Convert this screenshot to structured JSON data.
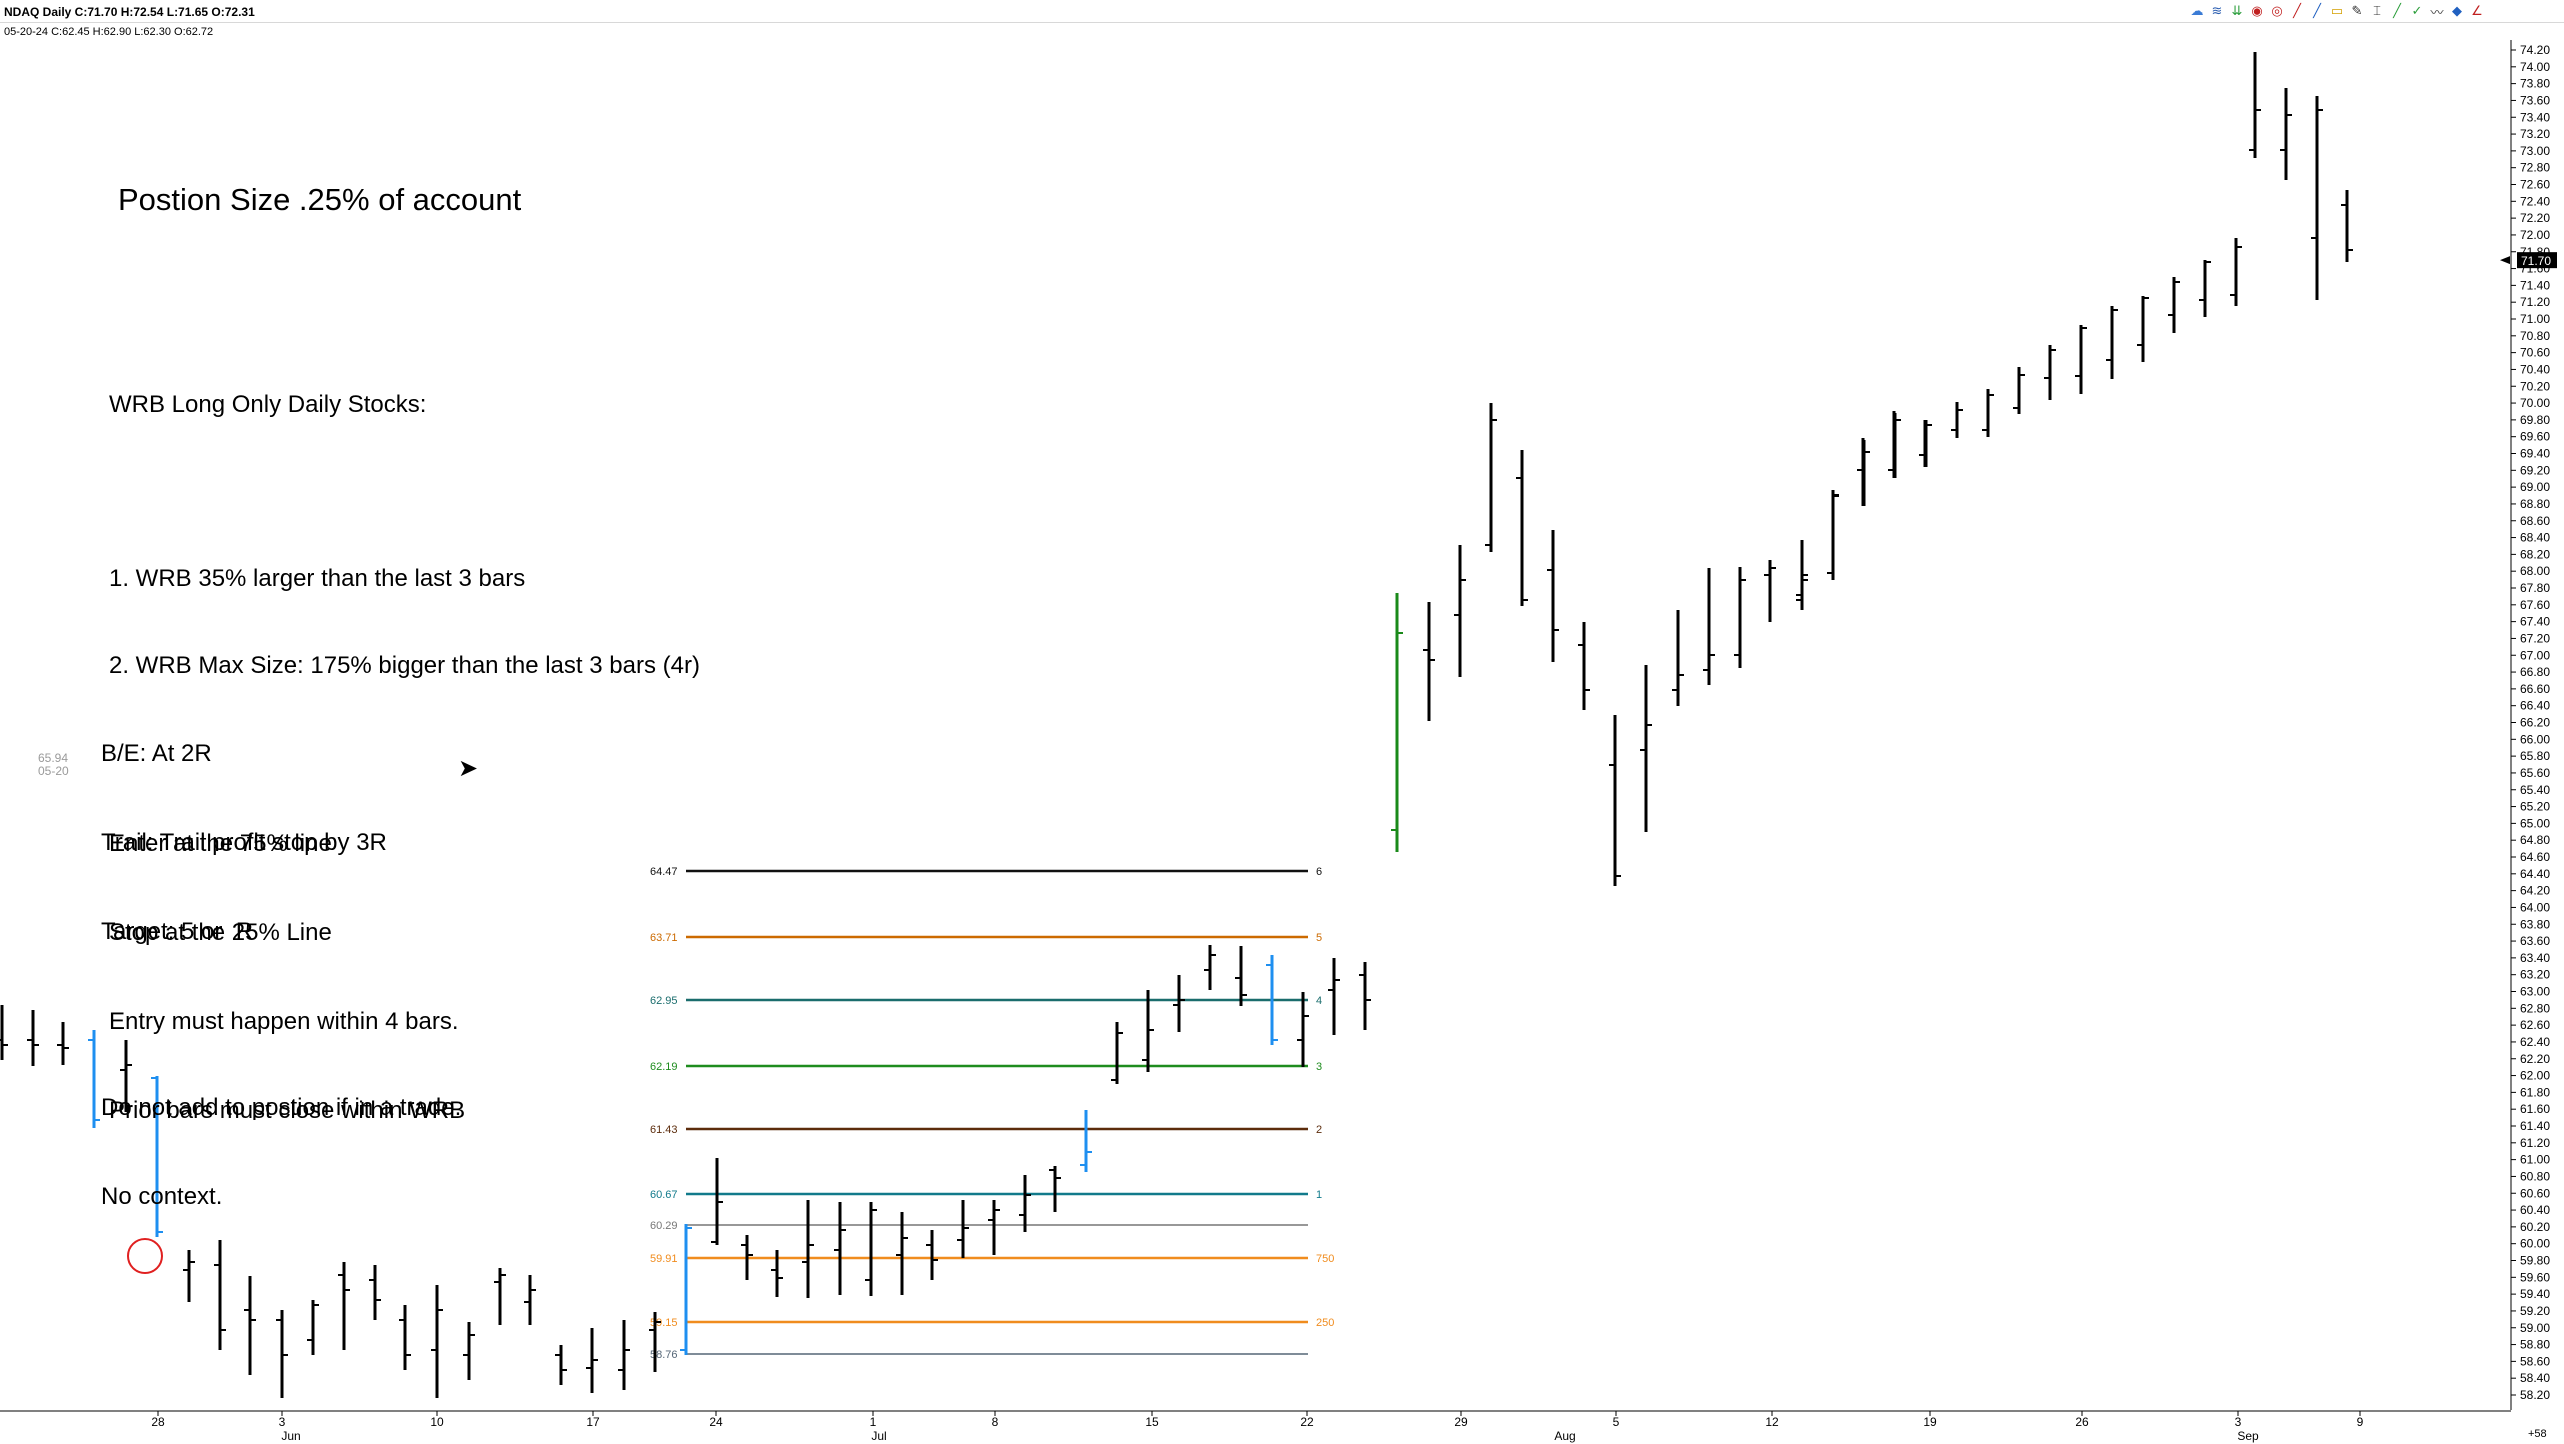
{
  "header": {
    "info_line1": "NDAQ Daily  C:71.70  H:72.54  L:71.65  O:72.31",
    "info_line2": "05-20-24  C:62.45  H:62.90  L:62.30  O:62.72"
  },
  "toolbar": {
    "icons": [
      "cloud-icon",
      "stack-icon",
      "arrows-icon",
      "target-icon",
      "spiral-icon",
      "line-red-icon",
      "line-blue-icon",
      "rect-icon",
      "pencil-icon",
      "cursor-icon",
      "line-icon",
      "check-icon",
      "zigzag-icon",
      "shapes-icon",
      "angle-icon"
    ]
  },
  "notes": {
    "title": "Postion Size .25% of account",
    "rules": [
      "WRB Long Only Daily Stocks:",
      "",
      "1. WRB 35% larger than the last 3 bars",
      "2. WRB Max Size: 175% bigger than the last 3 bars (4r)",
      "",
      "Enter at the 75% line",
      "Stop at the 25% Line",
      "Entry must happen within 4 bars.",
      "Prior bars must close within WRB"
    ],
    "management": [
      "B/E: At 2R",
      "Trail: Trail profit stop by 3R",
      "Target: 5 or  R",
      "",
      "Do not add to postion if in a trade.",
      "No context."
    ],
    "side_value_price": "65.94",
    "side_value_date": "05-20"
  },
  "price_axis": {
    "labels": [
      "74.20",
      "74.00",
      "73.80",
      "73.60",
      "73.40",
      "73.20",
      "73.00",
      "72.80",
      "72.60",
      "72.40",
      "72.20",
      "72.00",
      "71.80",
      "71.60",
      "71.40",
      "71.20",
      "71.00",
      "70.80",
      "70.60",
      "70.40",
      "70.20",
      "70.00",
      "69.80",
      "69.60",
      "69.40",
      "69.20",
      "69.00",
      "68.80",
      "68.60",
      "68.40",
      "68.20",
      "68.00",
      "67.80",
      "67.60",
      "67.40",
      "67.20",
      "67.00",
      "66.80",
      "66.60",
      "66.40",
      "66.20",
      "66.00",
      "65.80",
      "65.60",
      "65.40",
      "65.20",
      "65.00",
      "64.80",
      "64.60",
      "64.40",
      "64.20",
      "64.00",
      "63.80",
      "63.60",
      "63.40",
      "63.20",
      "63.00",
      "62.80",
      "62.60",
      "62.40",
      "62.20",
      "62.00",
      "61.80",
      "61.60",
      "61.40",
      "61.20",
      "61.00",
      "60.80",
      "60.60",
      "60.40",
      "60.20",
      "60.00",
      "59.80",
      "59.60",
      "59.40",
      "59.20",
      "59.00",
      "58.80",
      "58.60",
      "58.40",
      "58.20"
    ],
    "current_price": "71.70",
    "corner_label": "+58"
  },
  "time_axis": {
    "days": [
      "28",
      "3",
      "10",
      "17",
      "24",
      "1",
      "8",
      "15",
      "22",
      "29",
      "5",
      "12",
      "19",
      "26",
      "3",
      "9"
    ],
    "months": [
      "Jun",
      "Jul",
      "Aug",
      "Sep"
    ]
  },
  "fib_levels": [
    {
      "price_label": "64.47",
      "tag": "6",
      "color": "#111111"
    },
    {
      "price_label": "63.71",
      "tag": "5",
      "color": "#cc6a00"
    },
    {
      "price_label": "62.95",
      "tag": "4",
      "color": "#1a6d6d"
    },
    {
      "price_label": "62.19",
      "tag": "3",
      "color": "#1e8c1e"
    },
    {
      "price_label": "61.43",
      "tag": "2",
      "color": "#5c2c0c"
    },
    {
      "price_label": "60.67",
      "tag": "1",
      "color": "#117a8b"
    },
    {
      "price_label": "60.29",
      "tag": "",
      "color": "#777777"
    },
    {
      "price_label": "59.91",
      "tag": "750",
      "color": "#f08c1e"
    },
    {
      "price_label": "59.15",
      "tag": "250",
      "color": "#f08c1e"
    },
    {
      "price_label": "58.76",
      "tag": "",
      "color": "#556677"
    }
  ],
  "colors": {
    "bar_up_down": "#000000",
    "wrb_blue": "#1e8ff0",
    "wrb_green": "#1a8a1a",
    "circle": "#e02020"
  }
}
